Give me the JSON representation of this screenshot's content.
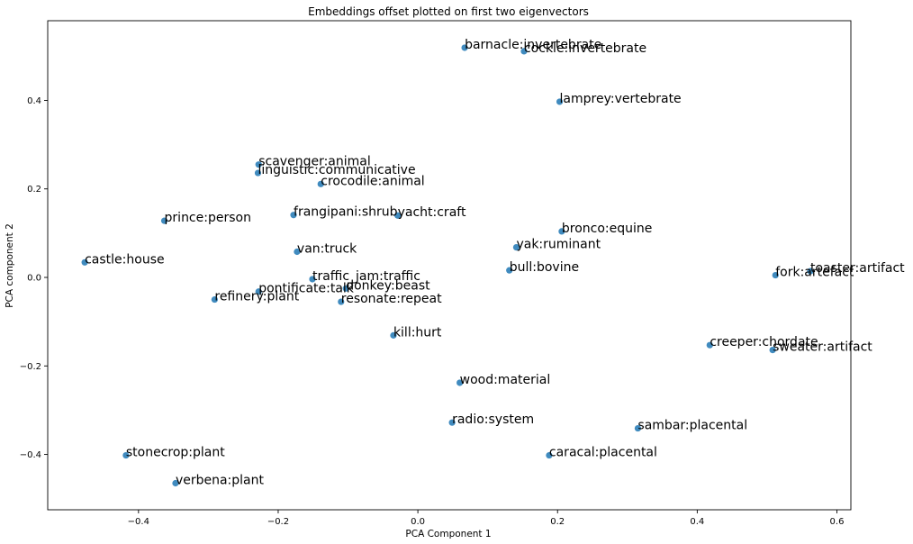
{
  "chart_data": {
    "type": "scatter",
    "title": "Embeddings offset plotted on first two eigenvectors",
    "xlabel": "PCA Component 1",
    "ylabel": "PCA component 2",
    "xlim": [
      -0.53,
      0.62
    ],
    "ylim": [
      -0.525,
      0.58
    ],
    "xticks": [
      -0.4,
      -0.2,
      0.0,
      0.2,
      0.4,
      0.6
    ],
    "xtick_labels": [
      "−0.4",
      "−0.2",
      "0.0",
      "0.2",
      "0.4",
      "0.6"
    ],
    "yticks": [
      -0.4,
      -0.2,
      0.0,
      0.2,
      0.4
    ],
    "ytick_labels": [
      "−0.4",
      "−0.2",
      "0.0",
      "0.2",
      "0.4"
    ],
    "grid": false,
    "marker_color": "#1f77b4",
    "points": [
      {
        "label": "barnacle:invertebrate",
        "x": 0.067,
        "y": 0.519
      },
      {
        "label": "cockle:invertebrate",
        "x": 0.152,
        "y": 0.511
      },
      {
        "label": "lamprey:vertebrate",
        "x": 0.203,
        "y": 0.397
      },
      {
        "label": "scavenger:animal",
        "x": -0.228,
        "y": 0.255
      },
      {
        "label": "linguistic:communicative",
        "x": -0.229,
        "y": 0.236
      },
      {
        "label": "crocodile:animal",
        "x": -0.139,
        "y": 0.211
      },
      {
        "label": "frangipani:shrub",
        "x": -0.178,
        "y": 0.141
      },
      {
        "label": "yacht:craft",
        "x": -0.029,
        "y": 0.14
      },
      {
        "label": "prince:person",
        "x": -0.363,
        "y": 0.128
      },
      {
        "label": "bronco:equine",
        "x": 0.206,
        "y": 0.104
      },
      {
        "label": "yak:ruminant",
        "x": 0.141,
        "y": 0.068
      },
      {
        "label": "van:truck",
        "x": -0.173,
        "y": 0.058
      },
      {
        "label": "castle:house",
        "x": -0.477,
        "y": 0.034
      },
      {
        "label": "bull:bovine",
        "x": 0.131,
        "y": 0.016
      },
      {
        "label": "toaster:artifact",
        "x": 0.562,
        "y": 0.014
      },
      {
        "label": "fork:artefact",
        "x": 0.512,
        "y": 0.005
      },
      {
        "label": "traffic_jam:traffic",
        "x": -0.151,
        "y": -0.004
      },
      {
        "label": "donkey:beast",
        "x": -0.103,
        "y": -0.025
      },
      {
        "label": "pontificate:talk",
        "x": -0.228,
        "y": -0.032
      },
      {
        "label": "resonate:repeat",
        "x": -0.11,
        "y": -0.055
      },
      {
        "label": "refinery:plant",
        "x": -0.291,
        "y": -0.05
      },
      {
        "label": "kill:hurt",
        "x": -0.035,
        "y": -0.131
      },
      {
        "label": "creeper:chordate",
        "x": 0.418,
        "y": -0.153
      },
      {
        "label": "sweater:artifact",
        "x": 0.508,
        "y": -0.164
      },
      {
        "label": "wood:material",
        "x": 0.06,
        "y": -0.238
      },
      {
        "label": "radio:system",
        "x": 0.049,
        "y": -0.328
      },
      {
        "label": "sambar:placental",
        "x": 0.315,
        "y": -0.341
      },
      {
        "label": "caracal:placental",
        "x": 0.188,
        "y": -0.402
      },
      {
        "label": "stonecrop:plant",
        "x": -0.418,
        "y": -0.402
      },
      {
        "label": "verbena:plant",
        "x": -0.347,
        "y": -0.465
      }
    ]
  }
}
